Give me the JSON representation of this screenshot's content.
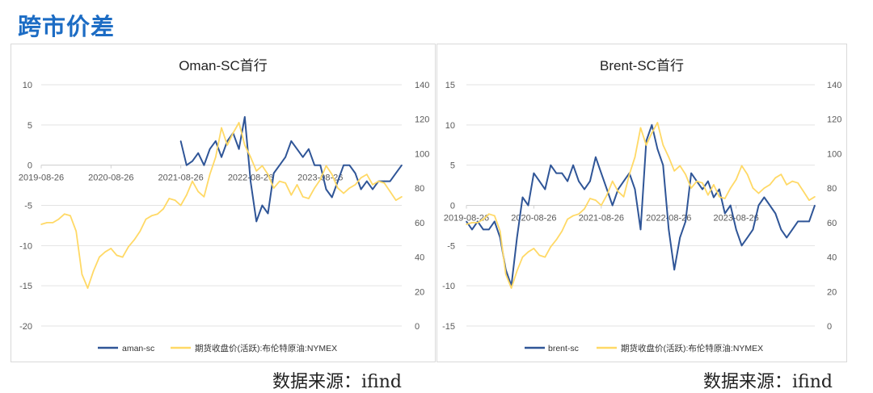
{
  "header": {
    "title": "跨市价差"
  },
  "footer": {
    "left_source": "数据来源：ifind",
    "right_source": "数据来源：ifind"
  },
  "colors": {
    "spread": "#2f5597",
    "brent": "#ffd966",
    "grid": "#e3e3e3",
    "axis_text": "#595959"
  },
  "chart_data": [
    {
      "type": "line",
      "title": "Oman-SC首行",
      "x_start_month": "2019-08",
      "x_tick_labels": [
        "2019-08-26",
        "2020-08-26",
        "2021-08-26",
        "2022-08-26",
        "2023-08-26"
      ],
      "ylim_left": [
        -20,
        10
      ],
      "yticks_left": [
        "10",
        "5",
        "0",
        "-5",
        "-10",
        "-15",
        "-20"
      ],
      "ylim_right": [
        0,
        140
      ],
      "yticks_right": [
        "140",
        "120",
        "100",
        "80",
        "60",
        "40",
        "20",
        "0"
      ],
      "grid": true,
      "legend_position": "bottom",
      "series": [
        {
          "name": "aman-sc",
          "axis": "left",
          "values": [
            null,
            null,
            null,
            null,
            null,
            null,
            null,
            null,
            null,
            null,
            null,
            null,
            null,
            null,
            null,
            null,
            null,
            null,
            null,
            null,
            null,
            null,
            null,
            null,
            3,
            0,
            0.5,
            1.5,
            0,
            2,
            3,
            1,
            3,
            4,
            2,
            6,
            -2,
            -7,
            -5,
            -6,
            -1,
            0,
            1,
            3,
            2,
            1,
            2,
            0,
            0,
            -3,
            -4,
            -2,
            0,
            0,
            -1,
            -3,
            -2,
            -3,
            -2,
            -2,
            -2,
            -1,
            0
          ]
        },
        {
          "name": "期货收盘价(活跃):布伦特原油:NYMEX",
          "axis": "right",
          "values": [
            59,
            60,
            60,
            62,
            65,
            64,
            55,
            30,
            22,
            32,
            40,
            43,
            45,
            41,
            40,
            46,
            50,
            55,
            62,
            64,
            65,
            68,
            74,
            73,
            70,
            76,
            84,
            78,
            75,
            88,
            98,
            115,
            105,
            112,
            118,
            105,
            98,
            90,
            93,
            88,
            80,
            84,
            83,
            76,
            82,
            75,
            74,
            80,
            85,
            93,
            88,
            80,
            77,
            80,
            82,
            86,
            88,
            82,
            84,
            83,
            78,
            73,
            75
          ]
        }
      ]
    },
    {
      "type": "line",
      "title": "Brent-SC首行",
      "x_start_month": "2019-08",
      "x_tick_labels": [
        "2019-08-26",
        "2020-08-26",
        "2021-08-26",
        "2022-08-26",
        "2023-08-26"
      ],
      "ylim_left": [
        -15,
        15
      ],
      "yticks_left": [
        "15",
        "10",
        "5",
        "0",
        "-5",
        "-10",
        "-15"
      ],
      "ylim_right": [
        0,
        140
      ],
      "yticks_right": [
        "140",
        "120",
        "100",
        "80",
        "60",
        "40",
        "20",
        "0"
      ],
      "grid": true,
      "legend_position": "bottom",
      "series": [
        {
          "name": "brent-sc",
          "axis": "left",
          "values": [
            -2,
            -3,
            -2,
            -3,
            -3,
            -2,
            -4,
            -8,
            -10,
            -4,
            1,
            0,
            4,
            3,
            2,
            5,
            4,
            4,
            3,
            5,
            3,
            2,
            3,
            6,
            4,
            2,
            0,
            2,
            3,
            4,
            2,
            -3,
            8,
            10,
            7,
            5,
            -3,
            -8,
            -4,
            -2,
            4,
            3,
            2,
            3,
            1,
            2,
            -1,
            0,
            -3,
            -5,
            -4,
            -3,
            0,
            1,
            0,
            -1,
            -3,
            -4,
            -3,
            -2,
            -2,
            -2,
            0
          ]
        },
        {
          "name": "期货收盘价(活跃):布伦特原油:NYMEX",
          "axis": "right",
          "values": [
            59,
            60,
            60,
            62,
            65,
            64,
            55,
            30,
            22,
            32,
            40,
            43,
            45,
            41,
            40,
            46,
            50,
            55,
            62,
            64,
            65,
            68,
            74,
            73,
            70,
            76,
            84,
            78,
            75,
            88,
            98,
            115,
            105,
            112,
            118,
            105,
            98,
            90,
            93,
            88,
            80,
            84,
            83,
            76,
            82,
            75,
            74,
            80,
            85,
            93,
            88,
            80,
            77,
            80,
            82,
            86,
            88,
            82,
            84,
            83,
            78,
            73,
            75
          ]
        }
      ]
    }
  ]
}
